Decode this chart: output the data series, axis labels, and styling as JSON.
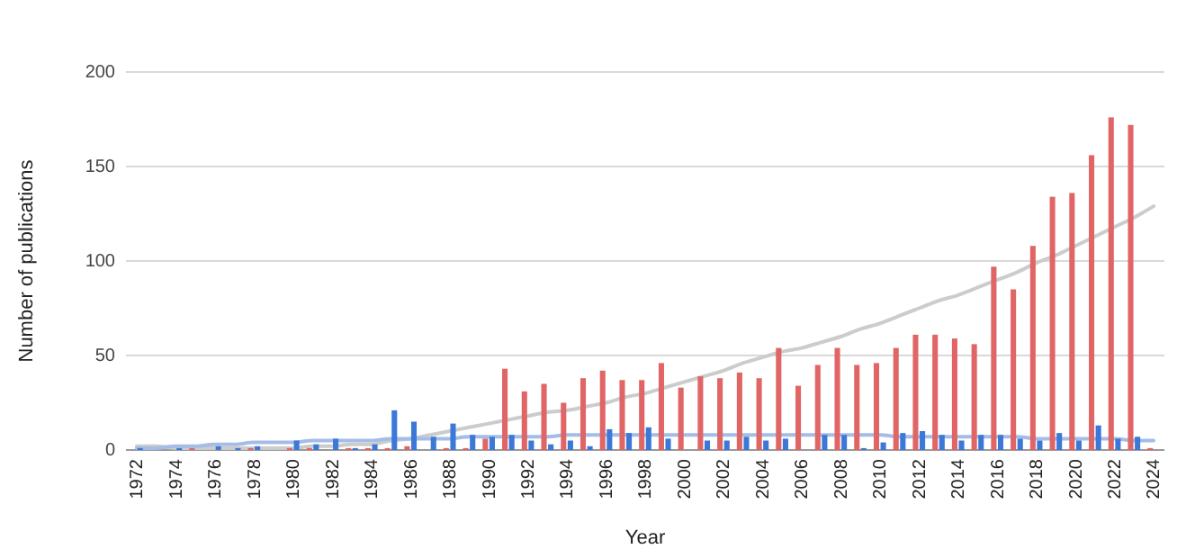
{
  "chart_data": {
    "type": "bar",
    "xlabel": "Year",
    "ylabel": "Number of publications",
    "categories": [
      "1972",
      null,
      "1974",
      null,
      "1976",
      null,
      "1978",
      null,
      "1980",
      null,
      "1982",
      null,
      "1984",
      null,
      "1986",
      null,
      "1988",
      null,
      "1990",
      null,
      "1992",
      null,
      "1994",
      null,
      "1996",
      null,
      "1998",
      null,
      "2000",
      null,
      "2002",
      null,
      "2004",
      null,
      "2006",
      null,
      "2008",
      null,
      "2010",
      null,
      "2012",
      null,
      "2014",
      null,
      "2016",
      null,
      "2018",
      null,
      "2020",
      null,
      "2022",
      null,
      "2024"
    ],
    "series": [
      {
        "color": "#e06666",
        "values": [
          0,
          0,
          0,
          1,
          0,
          0,
          1,
          0,
          1,
          1,
          0,
          1,
          1,
          1,
          2,
          0,
          1,
          1,
          6,
          43,
          31,
          35,
          25,
          38,
          42,
          37,
          37,
          46,
          33,
          39,
          38,
          41,
          38,
          54,
          34,
          45,
          54,
          45,
          46,
          54,
          61,
          61,
          59,
          56,
          97,
          85,
          108,
          134,
          136,
          156,
          176,
          172,
          1
        ]
      },
      {
        "color": "#3c78d8",
        "values": [
          1,
          0,
          1,
          0,
          2,
          1,
          2,
          0,
          5,
          3,
          6,
          1,
          3,
          21,
          15,
          7,
          14,
          8,
          7,
          8,
          5,
          3,
          5,
          2,
          11,
          9,
          12,
          6,
          0,
          5,
          5,
          7,
          5,
          6,
          0,
          8,
          8,
          1,
          4,
          9,
          10,
          8,
          5,
          8,
          8,
          6,
          5,
          9,
          5,
          13,
          6,
          7,
          0
        ]
      },
      {
        "type": "line",
        "color": "#cccccc",
        "values": [
          2,
          2,
          1,
          1,
          1,
          1,
          1,
          1,
          1,
          2,
          2,
          3,
          3,
          5,
          6,
          8,
          10,
          12,
          14,
          16,
          18,
          20,
          21,
          23,
          25,
          28,
          30,
          33,
          36,
          39,
          42,
          46,
          49,
          52,
          54,
          57,
          60,
          64,
          67,
          71,
          75,
          79,
          82,
          86,
          90,
          94,
          99,
          103,
          108,
          113,
          118,
          123,
          129
        ]
      },
      {
        "type": "line",
        "color": "#a4bde8",
        "values": [
          1,
          1,
          2,
          2,
          3,
          3,
          4,
          4,
          4,
          5,
          5,
          5,
          5,
          6,
          6,
          6,
          6,
          7,
          7,
          7,
          7,
          7,
          8,
          8,
          8,
          8,
          8,
          8,
          8,
          8,
          8,
          8,
          8,
          8,
          8,
          8,
          8,
          8,
          8,
          7,
          7,
          7,
          7,
          7,
          7,
          7,
          6,
          6,
          6,
          6,
          6,
          5,
          5
        ]
      }
    ],
    "ylim": [
      0,
      200
    ],
    "yticks": [
      0,
      50,
      100,
      150,
      200
    ],
    "grid": "y"
  }
}
